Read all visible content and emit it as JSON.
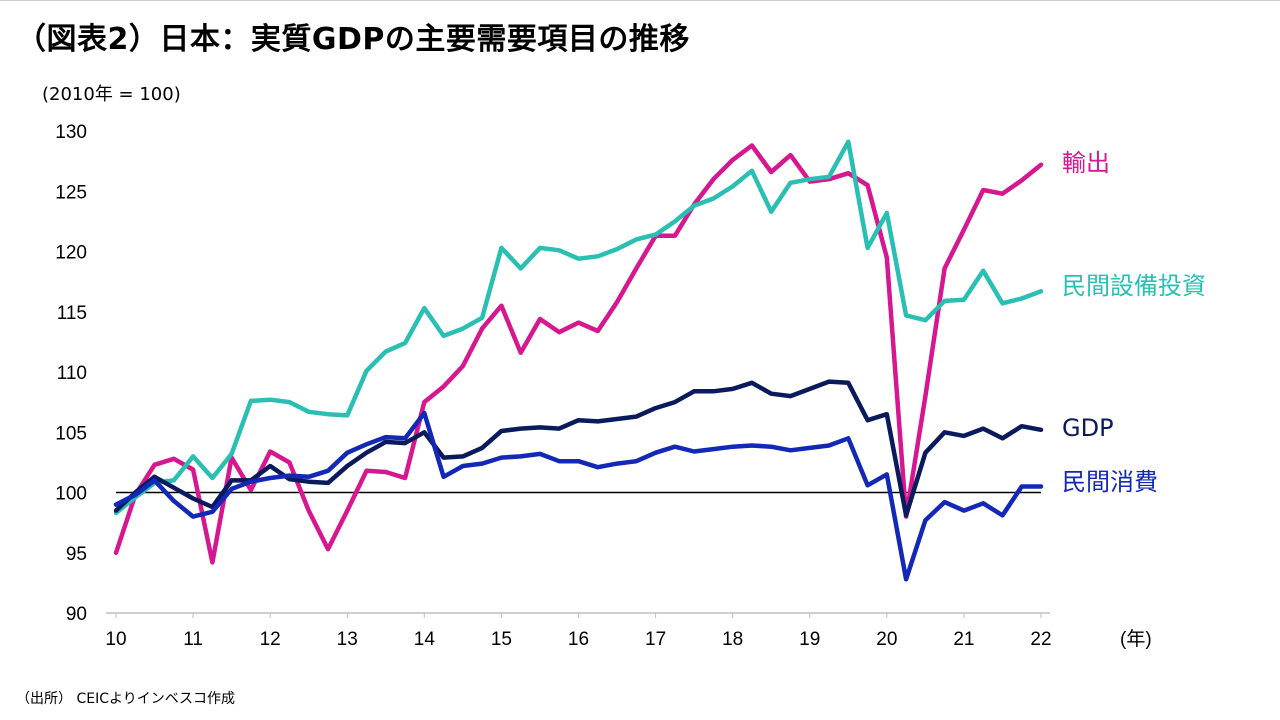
{
  "title": "（図表2）日本：実質GDPの主要需要項目の推移",
  "unit_label": "(2010年 = 100)",
  "x_unit_label": "(年)",
  "source": "（出所） CEICよりインベスコ作成",
  "colors": {
    "exports": "#d6178f",
    "capex": "#2abfb3",
    "gdp": "#0a1a5c",
    "consumption": "#1428b8",
    "baseline": "#000000",
    "axis": "#bfbfbf"
  },
  "chart_data": {
    "type": "line",
    "title": "（図表2）日本：実質GDPの主要需要項目の推移",
    "xlabel": "(年)",
    "ylabel": "(2010年 = 100)",
    "ylim": [
      90,
      130
    ],
    "xlim": [
      2010,
      2022
    ],
    "y_ticks": [
      90,
      95,
      100,
      105,
      110,
      115,
      120,
      125,
      130
    ],
    "x_ticks": [
      {
        "value": 2010,
        "label": "10"
      },
      {
        "value": 2011,
        "label": "11"
      },
      {
        "value": 2012,
        "label": "12"
      },
      {
        "value": 2013,
        "label": "13"
      },
      {
        "value": 2014,
        "label": "14"
      },
      {
        "value": 2015,
        "label": "15"
      },
      {
        "value": 2016,
        "label": "16"
      },
      {
        "value": 2017,
        "label": "17"
      },
      {
        "value": 2018,
        "label": "18"
      },
      {
        "value": 2019,
        "label": "19"
      },
      {
        "value": 2020,
        "label": "20"
      },
      {
        "value": 2021,
        "label": "21"
      },
      {
        "value": 2022,
        "label": "22"
      }
    ],
    "reference_line": 100,
    "grid": false,
    "x": [
      2010.0,
      2010.25,
      2010.5,
      2010.75,
      2011.0,
      2011.25,
      2011.5,
      2011.75,
      2012.0,
      2012.25,
      2012.5,
      2012.75,
      2013.0,
      2013.25,
      2013.5,
      2013.75,
      2014.0,
      2014.25,
      2014.5,
      2014.75,
      2015.0,
      2015.25,
      2015.5,
      2015.75,
      2016.0,
      2016.25,
      2016.5,
      2016.75,
      2017.0,
      2017.25,
      2017.5,
      2017.75,
      2018.0,
      2018.25,
      2018.5,
      2018.75,
      2019.0,
      2019.25,
      2019.5,
      2019.75,
      2020.0,
      2020.25,
      2020.5,
      2020.75,
      2021.0,
      2021.25,
      2021.5,
      2021.75,
      2022.0
    ],
    "series": [
      {
        "name": "輸出",
        "color_key": "exports",
        "values": [
          95.0,
          99.8,
          102.3,
          102.8,
          101.9,
          94.2,
          102.9,
          100.2,
          103.4,
          102.5,
          98.5,
          95.3,
          98.5,
          101.8,
          101.7,
          101.2,
          107.5,
          108.8,
          110.5,
          113.6,
          115.5,
          111.6,
          114.4,
          113.3,
          114.1,
          113.4,
          115.8,
          118.6,
          121.3,
          121.3,
          123.9,
          126.0,
          127.6,
          128.8,
          126.6,
          128.0,
          125.8,
          126.0,
          126.5,
          125.5,
          119.5,
          98.0,
          108.0,
          118.6,
          121.8,
          125.1,
          124.8,
          125.9,
          127.2
        ]
      },
      {
        "name": "民間設備投資",
        "color_key": "capex",
        "values": [
          98.3,
          99.6,
          100.8,
          101.0,
          103.0,
          101.2,
          103.2,
          107.6,
          107.7,
          107.5,
          106.7,
          106.5,
          106.4,
          110.1,
          111.7,
          112.4,
          115.3,
          113.0,
          113.6,
          114.5,
          120.3,
          118.6,
          120.3,
          120.1,
          119.4,
          119.6,
          120.2,
          121.0,
          121.4,
          122.5,
          123.8,
          124.4,
          125.4,
          126.7,
          123.3,
          125.7,
          126.0,
          126.2,
          129.1,
          120.3,
          123.2,
          114.7,
          114.3,
          115.9,
          116.0,
          118.4,
          115.7,
          116.1,
          116.7
        ]
      },
      {
        "name": "GDP",
        "color_key": "gdp",
        "values": [
          98.5,
          100.0,
          101.3,
          100.4,
          99.5,
          98.8,
          101.0,
          101.0,
          102.2,
          101.1,
          100.9,
          100.8,
          102.2,
          103.3,
          104.2,
          104.1,
          105.0,
          102.9,
          103.0,
          103.7,
          105.1,
          105.3,
          105.4,
          105.3,
          106.0,
          105.9,
          106.1,
          106.3,
          107.0,
          107.5,
          108.4,
          108.4,
          108.6,
          109.1,
          108.2,
          108.0,
          108.6,
          109.2,
          109.1,
          106.0,
          106.5,
          98.1,
          103.3,
          105.0,
          104.7,
          105.3,
          104.5,
          105.5,
          105.2
        ]
      },
      {
        "name": "民間消費",
        "color_key": "consumption",
        "values": [
          99.0,
          99.8,
          101.0,
          99.3,
          98.0,
          98.4,
          100.3,
          100.9,
          101.2,
          101.4,
          101.3,
          101.8,
          103.3,
          104.0,
          104.6,
          104.5,
          106.6,
          101.3,
          102.2,
          102.4,
          102.9,
          103.0,
          103.2,
          102.6,
          102.6,
          102.1,
          102.4,
          102.6,
          103.3,
          103.8,
          103.4,
          103.6,
          103.8,
          103.9,
          103.8,
          103.5,
          103.7,
          103.9,
          104.5,
          100.6,
          101.5,
          92.8,
          97.7,
          99.2,
          98.5,
          99.1,
          98.1,
          100.5,
          100.5
        ]
      }
    ]
  }
}
